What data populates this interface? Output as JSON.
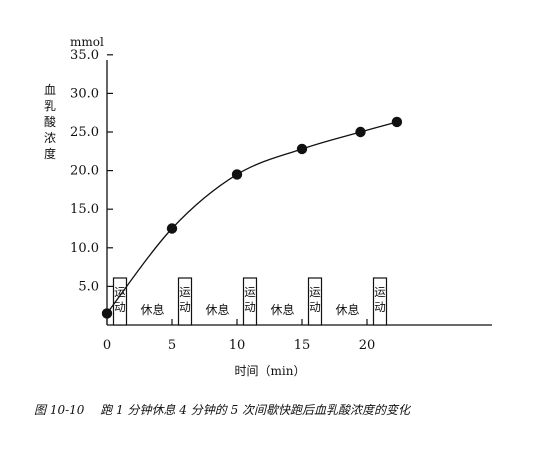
{
  "chart_data": {
    "type": "scatter",
    "title": "",
    "xlabel": "时间（min）",
    "ylabel": "血乳酸浓度",
    "yunit": "mmol",
    "xlim": [
      0,
      25
    ],
    "ylim": [
      0,
      35
    ],
    "x_ticks": [
      "0",
      "5",
      "10",
      "15",
      "20"
    ],
    "y_ticks": [
      "5.0",
      "10.0",
      "15.0",
      "20.0",
      "25.0",
      "30.0",
      "35.0"
    ],
    "points": [
      {
        "x": 0,
        "y": 1.5
      },
      {
        "x": 5,
        "y": 12.5
      },
      {
        "x": 10,
        "y": 19.5
      },
      {
        "x": 15,
        "y": 22.8
      },
      {
        "x": 19.5,
        "y": 25.0
      },
      {
        "x": 22.3,
        "y": 26.3
      }
    ],
    "phase_boxes": [
      {
        "label": "运动",
        "start": 0.5,
        "end": 1.5
      },
      {
        "label": "运动",
        "start": 5.5,
        "end": 6.5
      },
      {
        "label": "运动",
        "start": 10.5,
        "end": 11.5
      },
      {
        "label": "运动",
        "start": 15.5,
        "end": 16.5
      },
      {
        "label": "运动",
        "start": 20.5,
        "end": 21.5
      }
    ],
    "rest_labels": [
      {
        "label": "休息",
        "x": 3.5
      },
      {
        "label": "休息",
        "x": 8.5
      },
      {
        "label": "休息",
        "x": 13.5
      },
      {
        "label": "休息",
        "x": 18.5
      }
    ],
    "grid": false,
    "legend": "none"
  },
  "caption": "图 10-10　 跑 1 分钟休息 4 分钟的 5 次间歇快跑后血乳酸浓度的变化"
}
